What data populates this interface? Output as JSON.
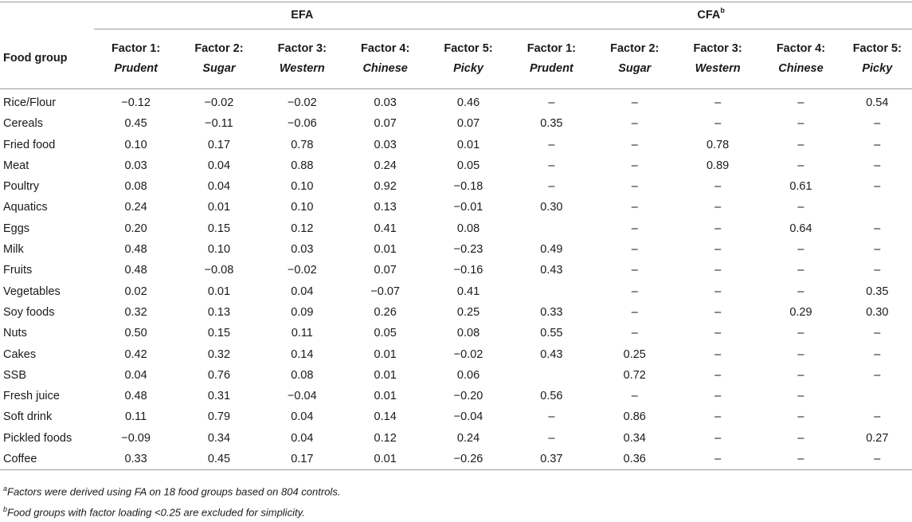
{
  "table": {
    "group_efa": "EFA",
    "group_cfa": "CFA",
    "group_cfa_sup": "b",
    "food_group_header": "Food group",
    "factor_headers": [
      {
        "line1": "Factor 1:",
        "line2": "Prudent"
      },
      {
        "line1": "Factor 2:",
        "line2": "Sugar"
      },
      {
        "line1": "Factor 3:",
        "line2": "Western"
      },
      {
        "line1": "Factor 4:",
        "line2": "Chinese"
      },
      {
        "line1": "Factor 5:",
        "line2": "Picky"
      },
      {
        "line1": "Factor 1:",
        "line2": "Prudent"
      },
      {
        "line1": "Factor 2:",
        "line2": "Sugar"
      },
      {
        "line1": "Factor 3:",
        "line2": "Western"
      },
      {
        "line1": "Factor 4:",
        "line2": "Chinese"
      },
      {
        "line1": "Factor 5:",
        "line2": "Picky"
      }
    ],
    "rows": [
      {
        "label": "Rice/Flour",
        "cells": [
          "−0.12",
          "−0.02",
          "−0.02",
          "0.03",
          "0.46",
          "–",
          "–",
          "–",
          "–",
          "0.54"
        ]
      },
      {
        "label": "Cereals",
        "cells": [
          "0.45",
          "−0.11",
          "−0.06",
          "0.07",
          "0.07",
          "0.35",
          "–",
          "–",
          "–",
          "–"
        ]
      },
      {
        "label": "Fried food",
        "cells": [
          "0.10",
          "0.17",
          "0.78",
          "0.03",
          "0.01",
          "–",
          "–",
          "0.78",
          "–",
          "–"
        ]
      },
      {
        "label": "Meat",
        "cells": [
          "0.03",
          "0.04",
          "0.88",
          "0.24",
          "0.05",
          "–",
          "–",
          "0.89",
          "–",
          "–"
        ]
      },
      {
        "label": "Poultry",
        "cells": [
          "0.08",
          "0.04",
          "0.10",
          "0.92",
          "−0.18",
          "–",
          "–",
          "–",
          "0.61",
          "–"
        ]
      },
      {
        "label": "Aquatics",
        "cells": [
          "0.24",
          "0.01",
          "0.10",
          "0.13",
          "−0.01",
          "0.30",
          "–",
          "–",
          "–",
          ""
        ]
      },
      {
        "label": "Eggs",
        "cells": [
          "0.20",
          "0.15",
          "0.12",
          "0.41",
          "0.08",
          "",
          "–",
          "–",
          "0.64",
          "–"
        ]
      },
      {
        "label": "Milk",
        "cells": [
          "0.48",
          "0.10",
          "0.03",
          "0.01",
          "−0.23",
          "0.49",
          "–",
          "–",
          "–",
          "–"
        ]
      },
      {
        "label": "Fruits",
        "cells": [
          "0.48",
          "−0.08",
          "−0.02",
          "0.07",
          "−0.16",
          "0.43",
          "–",
          "–",
          "–",
          "–"
        ]
      },
      {
        "label": "Vegetables",
        "cells": [
          "0.02",
          "0.01",
          "0.04",
          "−0.07",
          "0.41",
          "",
          "–",
          "–",
          "–",
          "0.35"
        ]
      },
      {
        "label": "Soy foods",
        "cells": [
          "0.32",
          "0.13",
          "0.09",
          "0.26",
          "0.25",
          "0.33",
          "–",
          "–",
          "0.29",
          "0.30"
        ]
      },
      {
        "label": "Nuts",
        "cells": [
          "0.50",
          "0.15",
          "0.11",
          "0.05",
          "0.08",
          "0.55",
          "–",
          "–",
          "–",
          "–"
        ]
      },
      {
        "label": "Cakes",
        "cells": [
          "0.42",
          "0.32",
          "0.14",
          "0.01",
          "−0.02",
          "0.43",
          "0.25",
          "–",
          "–",
          "–"
        ]
      },
      {
        "label": "SSB",
        "cells": [
          "0.04",
          "0.76",
          "0.08",
          "0.01",
          "0.06",
          "",
          "0.72",
          "–",
          "–",
          "–"
        ]
      },
      {
        "label": "Fresh juice",
        "cells": [
          "0.48",
          "0.31",
          "−0.04",
          "0.01",
          "−0.20",
          "0.56",
          "–",
          "–",
          "–",
          ""
        ]
      },
      {
        "label": "Soft drink",
        "cells": [
          "0.11",
          "0.79",
          "0.04",
          "0.14",
          "−0.04",
          "–",
          "0.86",
          "–",
          "–",
          "–"
        ]
      },
      {
        "label": "Pickled foods",
        "cells": [
          "−0.09",
          "0.34",
          "0.04",
          "0.12",
          "0.24",
          "–",
          "0.34",
          "–",
          "–",
          "0.27"
        ]
      },
      {
        "label": "Coffee",
        "cells": [
          "0.33",
          "0.45",
          "0.17",
          "0.01",
          "−0.26",
          "0.37",
          "0.36",
          "–",
          "–",
          "–"
        ]
      }
    ]
  },
  "notes": {
    "a_sup": "a",
    "a_text": "Factors were derived using FA on 18 food groups based on 804 controls.",
    "b_sup": "b",
    "b_text": "Food groups with factor loading <0.25 are excluded for simplicity."
  }
}
